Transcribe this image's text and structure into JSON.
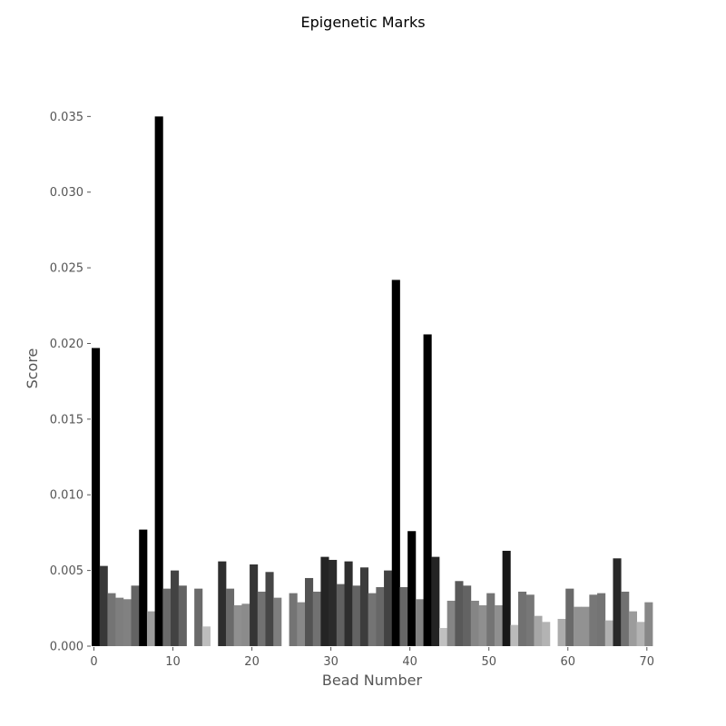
{
  "chart_data": {
    "type": "bar",
    "title": "Epigenetic Marks",
    "xlabel": "Bead Number",
    "ylabel": "Score",
    "xlim": [
      0,
      71
    ],
    "ylim": [
      0,
      0.0352
    ],
    "xticks": [
      "0",
      "10",
      "20",
      "30",
      "40",
      "50",
      "60",
      "70"
    ],
    "yticks": [
      "0.000",
      "0.005",
      "0.010",
      "0.015",
      "0.020",
      "0.025",
      "0.030",
      "0.035"
    ],
    "grid": false,
    "legend": "none",
    "bar_color_scale": "grayscale, darker = higher score",
    "x": [
      0,
      1,
      2,
      3,
      4,
      5,
      6,
      7,
      8,
      9,
      10,
      11,
      12,
      13,
      14,
      15,
      16,
      17,
      18,
      19,
      20,
      21,
      22,
      23,
      24,
      25,
      26,
      27,
      28,
      29,
      30,
      31,
      32,
      33,
      34,
      35,
      36,
      37,
      38,
      39,
      40,
      41,
      42,
      43,
      44,
      45,
      46,
      47,
      48,
      49,
      50,
      51,
      52,
      53,
      54,
      55,
      56,
      57,
      58,
      59,
      60,
      61,
      62,
      63,
      64,
      65,
      66,
      67,
      68,
      69,
      70
    ],
    "values": [
      0.0197,
      0.0053,
      0.0035,
      0.0032,
      0.0031,
      0.004,
      0.0077,
      0.0023,
      0.035,
      0.0038,
      0.005,
      0.004,
      0.0,
      0.0038,
      0.0013,
      0.0,
      0.0056,
      0.0038,
      0.0027,
      0.0028,
      0.0054,
      0.0036,
      0.0049,
      0.0032,
      0.0,
      0.0035,
      0.0029,
      0.0045,
      0.0036,
      0.0059,
      0.0057,
      0.0041,
      0.0056,
      0.004,
      0.0052,
      0.0035,
      0.0039,
      0.005,
      0.0242,
      0.0039,
      0.0076,
      0.0031,
      0.0206,
      0.0059,
      0.0012,
      0.003,
      0.0043,
      0.004,
      0.003,
      0.0027,
      0.0035,
      0.0027,
      0.0063,
      0.0014,
      0.0036,
      0.0034,
      0.002,
      0.0016,
      0.0,
      0.0018,
      0.0038,
      0.0026,
      0.0026,
      0.0034,
      0.0035,
      0.0017,
      0.0058,
      0.0036,
      0.0023,
      0.0016,
      0.0029
    ]
  }
}
